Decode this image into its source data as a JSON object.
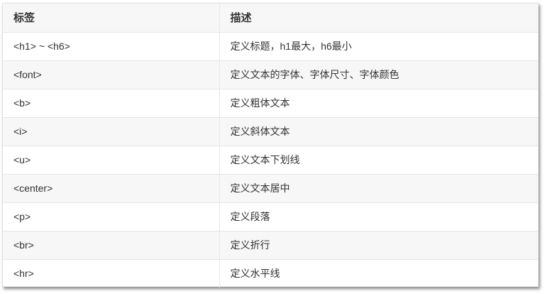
{
  "table": {
    "headers": [
      "标签",
      "描述"
    ],
    "rows": [
      [
        "<h1> ~ <h6>",
        "定义标题，h1最大，h6最小"
      ],
      [
        "<font>",
        "定义文本的字体、字体尺寸、字体颜色"
      ],
      [
        "<b>",
        "定义粗体文本"
      ],
      [
        "<i>",
        "定义斜体文本"
      ],
      [
        "<u>",
        "定义文本下划线"
      ],
      [
        "<center>",
        "定义文本居中"
      ],
      [
        "<p>",
        "定义段落"
      ],
      [
        "<br>",
        "定义折行"
      ],
      [
        "<hr>",
        "定义水平线"
      ]
    ]
  }
}
